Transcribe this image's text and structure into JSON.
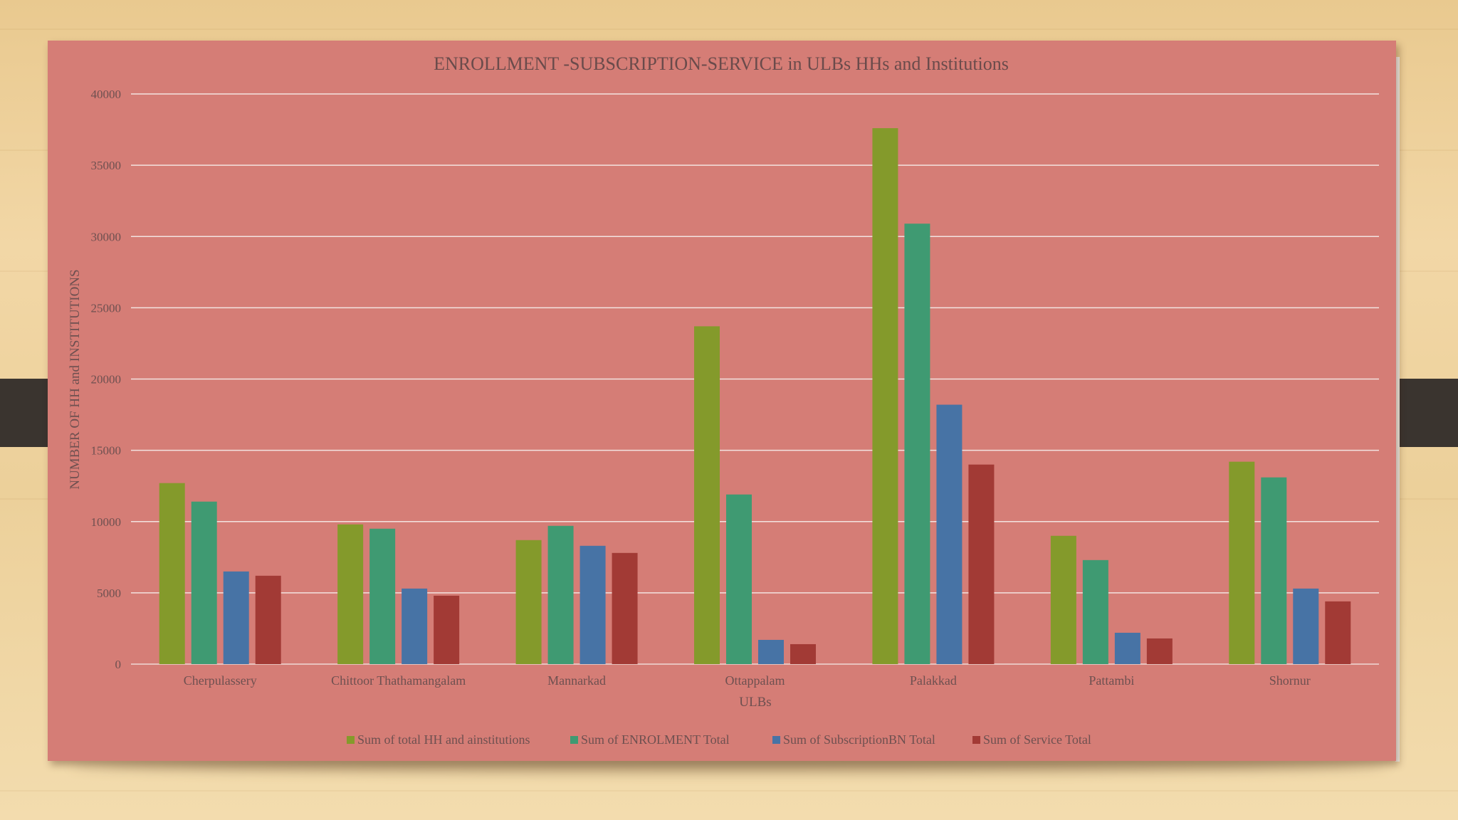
{
  "chart_data": {
    "type": "bar",
    "title": "ENROLLMENT -SUBSCRIPTION-SERVICE in ULBs  HHs and Institutions",
    "xlabel": "ULBs",
    "ylabel": "NUMBER OF HH and INSTITUTIONS",
    "ylim": [
      0,
      40000
    ],
    "yticks": [
      "0",
      "5000",
      "10000",
      "15000",
      "20000",
      "25000",
      "30000",
      "35000",
      "40000"
    ],
    "categories": [
      "Cherpulassery",
      "Chittoor Thathamangalam",
      "Mannarkad",
      "Ottappalam",
      "Palakkad",
      "Pattambi",
      "Shornur"
    ],
    "series": [
      {
        "name": "Sum of total HH and ainstitutions",
        "color": "#849a2b",
        "values": [
          12700,
          9800,
          8700,
          23700,
          37600,
          9000,
          14200
        ]
      },
      {
        "name": "Sum of ENROLMENT Total",
        "color": "#3f9a72",
        "values": [
          11400,
          9500,
          9700,
          11900,
          30900,
          7300,
          13100
        ]
      },
      {
        "name": "Sum of SubscriptionBN Total",
        "color": "#4773a5",
        "values": [
          6500,
          5300,
          8300,
          1700,
          18200,
          2200,
          5300
        ]
      },
      {
        "name": "Sum of Service   Total",
        "color": "#a23a35",
        "values": [
          6200,
          4800,
          7800,
          1400,
          14000,
          1800,
          4400
        ]
      }
    ],
    "grid": true,
    "legend": "bottom"
  }
}
